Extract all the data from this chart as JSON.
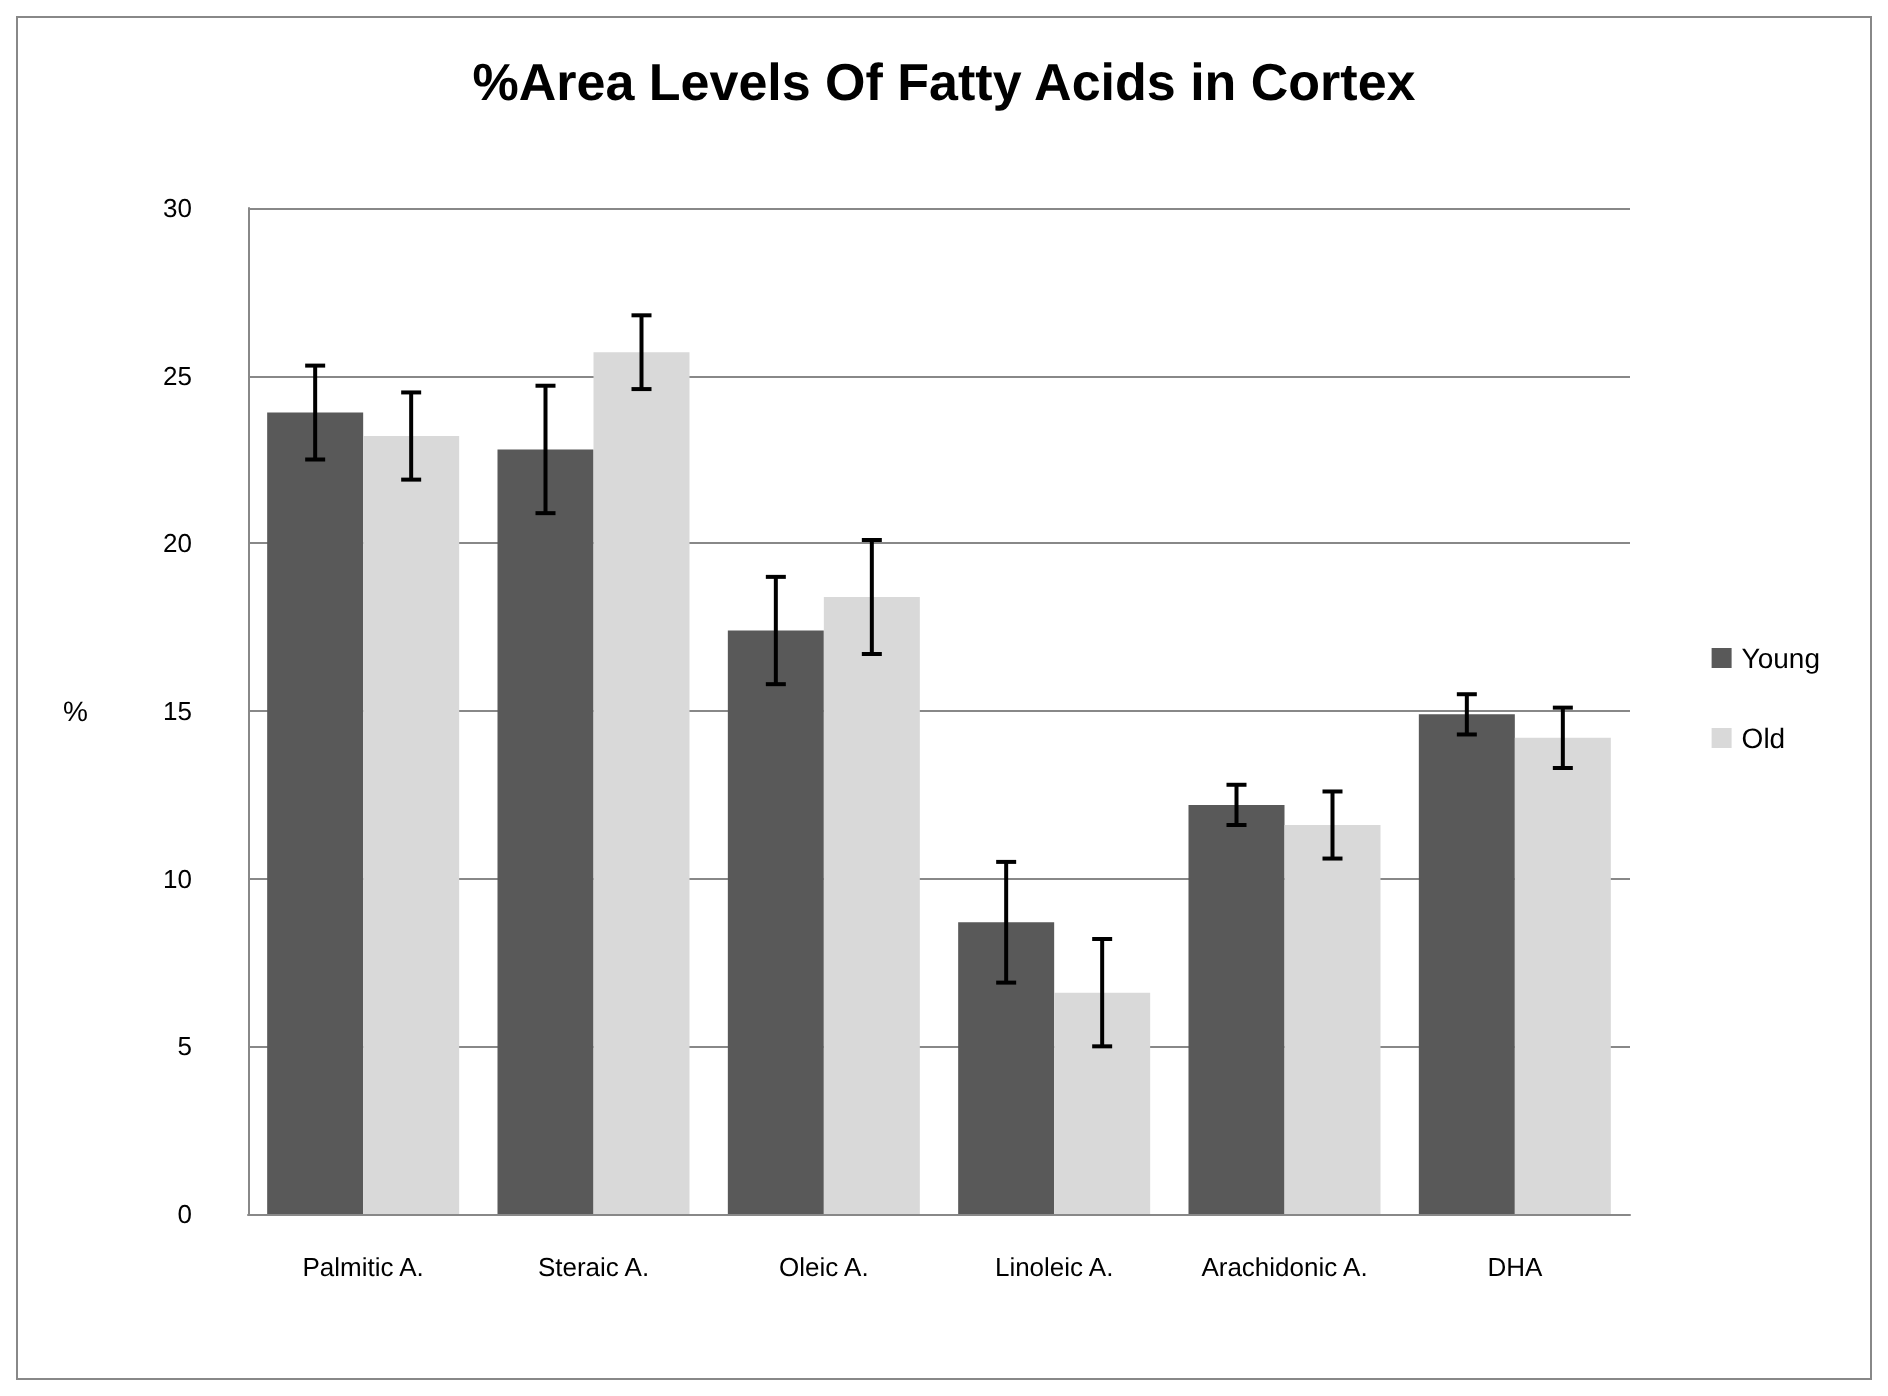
{
  "chart_data": {
    "type": "bar",
    "title": "%Area Levels Of Fatty Acids in Cortex",
    "ylabel": "%",
    "categories": [
      "Palmitic A.",
      "Steraic A.",
      "Oleic A.",
      "Linoleic A.",
      "Arachidonic A.",
      "DHA"
    ],
    "series": [
      {
        "name": "Young",
        "color": "#595959",
        "values": [
          23.9,
          22.8,
          17.4,
          8.7,
          12.2,
          14.9
        ],
        "errors": [
          1.4,
          1.9,
          1.6,
          1.8,
          0.6,
          0.6
        ]
      },
      {
        "name": "Old",
        "color": "#d9d9d9",
        "values": [
          23.2,
          25.7,
          18.4,
          6.6,
          11.6,
          14.2
        ],
        "errors": [
          1.3,
          1.1,
          1.7,
          1.6,
          1.0,
          0.9
        ]
      }
    ],
    "ylim": [
      0,
      30
    ],
    "yticks": [
      0,
      5,
      10,
      15,
      20,
      25,
      30
    ],
    "grid": "y",
    "legend": "right"
  }
}
